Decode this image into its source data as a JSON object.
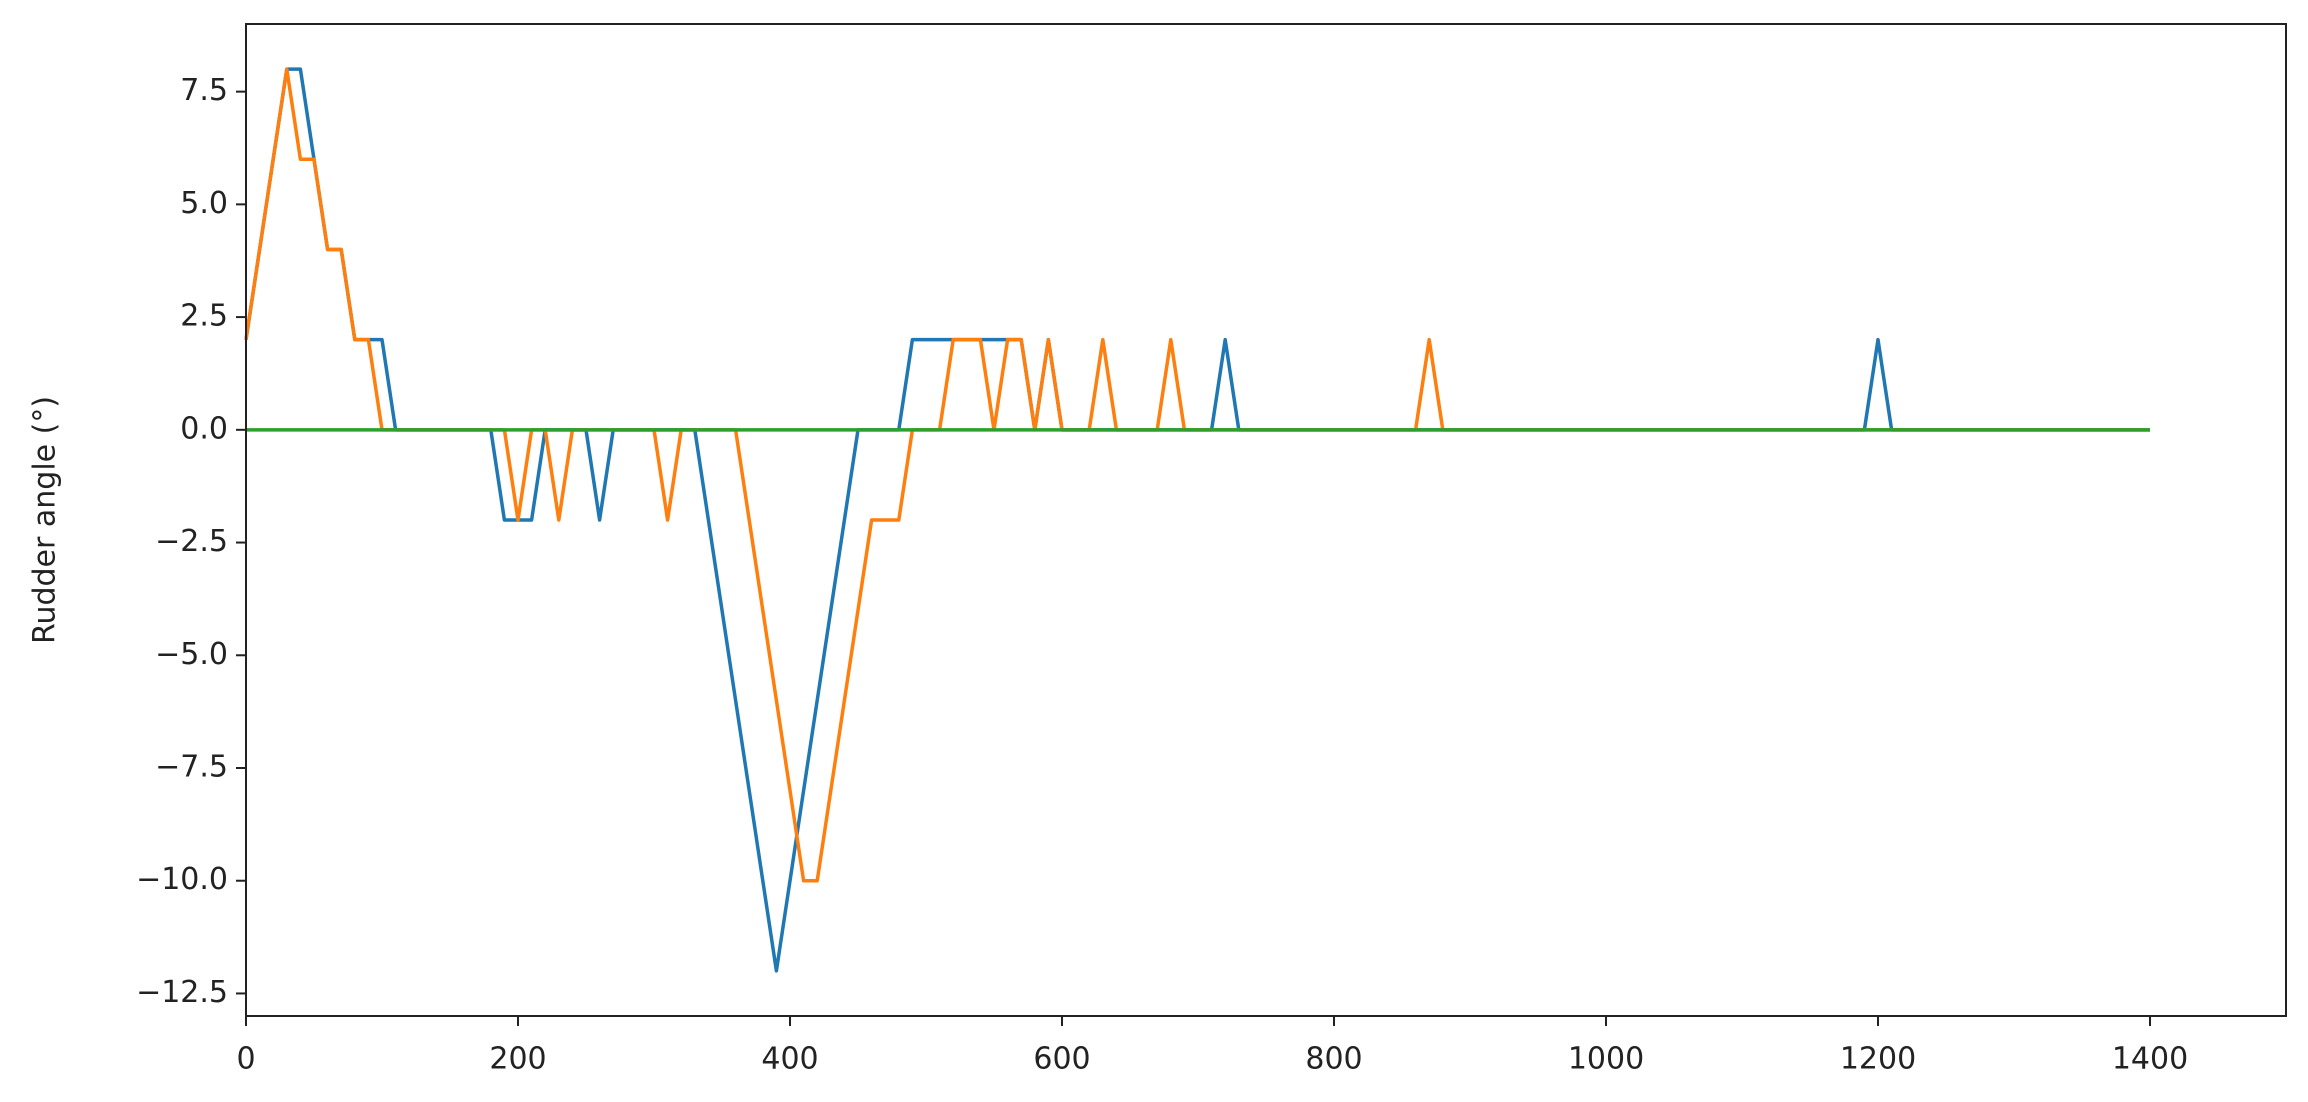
{
  "chart_data": {
    "type": "line",
    "ylabel": "Rudder angle (°)",
    "xlim": [
      0,
      1500
    ],
    "xticks": [
      0,
      200,
      400,
      600,
      800,
      1000,
      1200,
      1400
    ],
    "ylim": [
      -13,
      9
    ],
    "yticks": [
      {
        "value": -12.5,
        "label": "−12.5"
      },
      {
        "value": -10,
        "label": "−10.0"
      },
      {
        "value": -7.5,
        "label": "−7.5"
      },
      {
        "value": -5,
        "label": "−5.0"
      },
      {
        "value": -2.5,
        "label": "−2.5"
      },
      {
        "value": 0,
        "label": "0.0"
      },
      2.5,
      {
        "value": 5,
        "label": "5.0"
      },
      7.5
    ],
    "grid": false,
    "x": [
      0,
      10,
      20,
      30,
      40,
      50,
      60,
      70,
      80,
      90,
      100,
      110,
      120,
      130,
      140,
      150,
      160,
      170,
      180,
      190,
      200,
      210,
      220,
      230,
      240,
      250,
      260,
      270,
      280,
      290,
      300,
      310,
      320,
      330,
      340,
      350,
      360,
      370,
      380,
      390,
      400,
      410,
      420,
      430,
      440,
      450,
      460,
      470,
      480,
      490,
      500,
      510,
      520,
      530,
      540,
      550,
      560,
      570,
      580,
      590,
      600,
      610,
      620,
      630,
      640,
      650,
      660,
      670,
      680,
      690,
      700,
      710,
      720,
      730,
      740,
      750,
      760,
      770,
      780,
      790,
      800,
      810,
      820,
      830,
      840,
      850,
      860,
      870,
      880,
      890,
      900,
      910,
      920,
      930,
      940,
      950,
      960,
      970,
      980,
      990,
      1000,
      1010,
      1020,
      1030,
      1040,
      1050,
      1060,
      1070,
      1080,
      1090,
      1100,
      1110,
      1120,
      1130,
      1140,
      1150,
      1160,
      1170,
      1180,
      1190,
      1200,
      1210,
      1220,
      1230,
      1240,
      1250,
      1260,
      1270,
      1280,
      1290,
      1300,
      1310,
      1320,
      1330,
      1340,
      1350,
      1360,
      1370,
      1380,
      1390,
      1400
    ],
    "series": [
      {
        "color": "#1f77b4",
        "values": [
          2,
          4,
          6,
          8,
          8,
          6,
          4,
          4,
          2,
          2,
          2,
          0,
          0,
          0,
          0,
          0,
          0,
          0,
          0,
          -2,
          -2,
          -2,
          0,
          0,
          0,
          0,
          -2,
          0,
          0,
          0,
          0,
          0,
          0,
          0,
          -2,
          -4,
          -6,
          -8,
          -10,
          -12,
          -10,
          -8,
          -6,
          -4,
          -2,
          0,
          0,
          0,
          0,
          2,
          2,
          2,
          2,
          2,
          2,
          2,
          2,
          2,
          0,
          2,
          0,
          0,
          0,
          0,
          0,
          0,
          0,
          0,
          0,
          0,
          0,
          0,
          2,
          0,
          0,
          0,
          0,
          0,
          0,
          0,
          0,
          0,
          0,
          0,
          0,
          0,
          0,
          0,
          0,
          0,
          0,
          0,
          0,
          0,
          0,
          0,
          0,
          0,
          0,
          0,
          0,
          0,
          0,
          0,
          0,
          0,
          0,
          0,
          0,
          0,
          0,
          0,
          0,
          0,
          0,
          0,
          0,
          0,
          0,
          0,
          2,
          0,
          0,
          0,
          0,
          0,
          0,
          0,
          0,
          0,
          0,
          0,
          0,
          0,
          0,
          0,
          0,
          0,
          0,
          0,
          0
        ]
      },
      {
        "color": "#ff7f0e",
        "values": [
          2,
          4,
          6,
          8,
          6,
          6,
          4,
          4,
          2,
          2,
          0,
          0,
          0,
          0,
          0,
          0,
          0,
          0,
          0,
          0,
          -2,
          0,
          0,
          -2,
          0,
          0,
          0,
          0,
          0,
          0,
          0,
          -2,
          0,
          0,
          0,
          0,
          0,
          -2,
          -4,
          -6,
          -8,
          -10,
          -10,
          -8,
          -6,
          -4,
          -2,
          -2,
          -2,
          0,
          0,
          0,
          2,
          2,
          2,
          0,
          2,
          2,
          0,
          2,
          0,
          0,
          0,
          2,
          0,
          0,
          0,
          0,
          2,
          0,
          0,
          0,
          0,
          0,
          0,
          0,
          0,
          0,
          0,
          0,
          0,
          0,
          0,
          0,
          0,
          0,
          0,
          2,
          0,
          0,
          0,
          0,
          0,
          0,
          0,
          0,
          0,
          0,
          0,
          0,
          0,
          0,
          0,
          0,
          0,
          0,
          0,
          0,
          0,
          0,
          0,
          0,
          0,
          0,
          0,
          0,
          0,
          0,
          0,
          0,
          0,
          0,
          0,
          0,
          0,
          0,
          0,
          0,
          0,
          0,
          0,
          0,
          0,
          0,
          0,
          0,
          0,
          0,
          0,
          0,
          0
        ]
      },
      {
        "color": "#2ca02c",
        "values": [
          0,
          0,
          0,
          0,
          0,
          0,
          0,
          0,
          0,
          0,
          0,
          0,
          0,
          0,
          0,
          0,
          0,
          0,
          0,
          0,
          0,
          0,
          0,
          0,
          0,
          0,
          0,
          0,
          0,
          0,
          0,
          0,
          0,
          0,
          0,
          0,
          0,
          0,
          0,
          0,
          0,
          0,
          0,
          0,
          0,
          0,
          0,
          0,
          0,
          0,
          0,
          0,
          0,
          0,
          0,
          0,
          0,
          0,
          0,
          0,
          0,
          0,
          0,
          0,
          0,
          0,
          0,
          0,
          0,
          0,
          0,
          0,
          0,
          0,
          0,
          0,
          0,
          0,
          0,
          0,
          0,
          0,
          0,
          0,
          0,
          0,
          0,
          0,
          0,
          0,
          0,
          0,
          0,
          0,
          0,
          0,
          0,
          0,
          0,
          0,
          0,
          0,
          0,
          0,
          0,
          0,
          0,
          0,
          0,
          0,
          0,
          0,
          0,
          0,
          0,
          0,
          0,
          0,
          0,
          0,
          0,
          0,
          0,
          0,
          0,
          0,
          0,
          0,
          0,
          0,
          0,
          0,
          0,
          0,
          0,
          0,
          0,
          0,
          0,
          0,
          0
        ]
      }
    ]
  }
}
